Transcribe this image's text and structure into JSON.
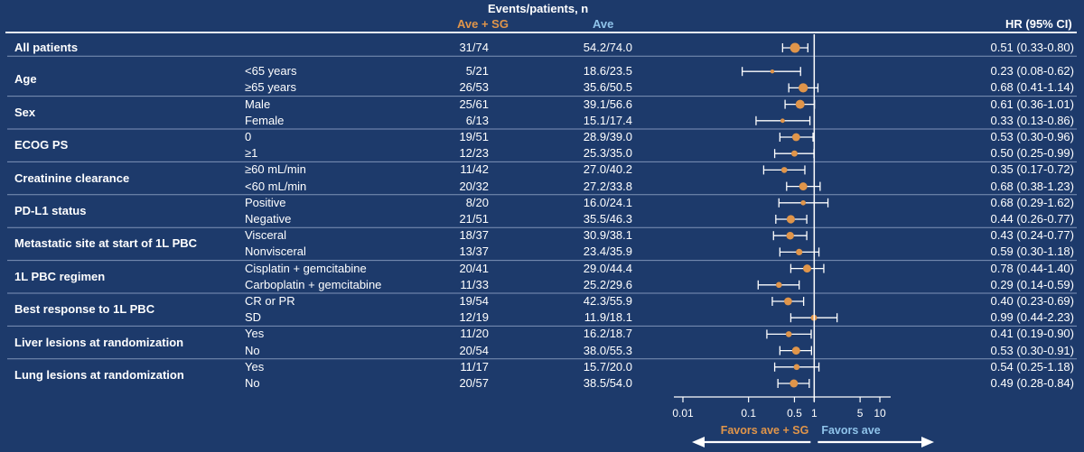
{
  "header": {
    "events_title": "Events/patients, n",
    "col_combo": "Ave + SG",
    "col_mono": "Ave",
    "col_hr": "HR (95% CI)"
  },
  "colors": {
    "background": "#1d3a6b",
    "combo_label": "#e0954a",
    "mono_label": "#8fc3ea",
    "marker": "#e0954a",
    "text": "#ffffff"
  },
  "chart_data": {
    "type": "forest",
    "x_scale": "log",
    "xlim": [
      0.01,
      10
    ],
    "reference_line": 1,
    "xticks": [
      0.01,
      0.1,
      0.5,
      1,
      5,
      10
    ],
    "xtick_labels": [
      "0.01",
      "0.1",
      "0.5",
      "1",
      "5",
      "10"
    ],
    "favors_left": "Favors ave + SG",
    "favors_right": "Favors ave",
    "groups": [
      {
        "label": "All patients",
        "rows": [
          {
            "subgroup": "",
            "combo": "31/74",
            "mono": "54.2/74.0",
            "hr": 0.51,
            "lo": 0.33,
            "hi": 0.8,
            "hr_text": "0.51 (0.33-0.80)"
          }
        ]
      },
      {
        "label": "Age",
        "rows": [
          {
            "subgroup": "<65 years",
            "combo": "5/21",
            "mono": "18.6/23.5",
            "hr": 0.23,
            "lo": 0.08,
            "hi": 0.62,
            "hr_text": "0.23 (0.08-0.62)"
          },
          {
            "subgroup": "≥65 years",
            "combo": "26/53",
            "mono": "35.6/50.5",
            "hr": 0.68,
            "lo": 0.41,
            "hi": 1.14,
            "hr_text": "0.68 (0.41-1.14)"
          }
        ]
      },
      {
        "label": "Sex",
        "rows": [
          {
            "subgroup": "Male",
            "combo": "25/61",
            "mono": "39.1/56.6",
            "hr": 0.61,
            "lo": 0.36,
            "hi": 1.01,
            "hr_text": "0.61 (0.36-1.01)"
          },
          {
            "subgroup": "Female",
            "combo": "6/13",
            "mono": "15.1/17.4",
            "hr": 0.33,
            "lo": 0.13,
            "hi": 0.86,
            "hr_text": "0.33 (0.13-0.86)"
          }
        ]
      },
      {
        "label": "ECOG PS",
        "rows": [
          {
            "subgroup": "0",
            "combo": "19/51",
            "mono": "28.9/39.0",
            "hr": 0.53,
            "lo": 0.3,
            "hi": 0.96,
            "hr_text": "0.53 (0.30-0.96)"
          },
          {
            "subgroup": "≥1",
            "combo": "12/23",
            "mono": "25.3/35.0",
            "hr": 0.5,
            "lo": 0.25,
            "hi": 0.99,
            "hr_text": "0.50 (0.25-0.99)"
          }
        ]
      },
      {
        "label": "Creatinine clearance",
        "rows": [
          {
            "subgroup": "≥60 mL/min",
            "combo": "11/42",
            "mono": "27.0/40.2",
            "hr": 0.35,
            "lo": 0.17,
            "hi": 0.72,
            "hr_text": "0.35 (0.17-0.72)"
          },
          {
            "subgroup": "<60 mL/min",
            "combo": "20/32",
            "mono": "27.2/33.8",
            "hr": 0.68,
            "lo": 0.38,
            "hi": 1.23,
            "hr_text": "0.68 (0.38-1.23)"
          }
        ]
      },
      {
        "label": "PD-L1 status",
        "rows": [
          {
            "subgroup": "Positive",
            "combo": "8/20",
            "mono": "16.0/24.1",
            "hr": 0.68,
            "lo": 0.29,
            "hi": 1.62,
            "hr_text": "0.68 (0.29-1.62)"
          },
          {
            "subgroup": "Negative",
            "combo": "21/51",
            "mono": "35.5/46.3",
            "hr": 0.44,
            "lo": 0.26,
            "hi": 0.77,
            "hr_text": "0.44 (0.26-0.77)"
          }
        ]
      },
      {
        "label": "Metastatic site at start of 1L PBC",
        "rows": [
          {
            "subgroup": "Visceral",
            "combo": "18/37",
            "mono": "30.9/38.1",
            "hr": 0.43,
            "lo": 0.24,
            "hi": 0.77,
            "hr_text": "0.43 (0.24-0.77)"
          },
          {
            "subgroup": "Nonvisceral",
            "combo": "13/37",
            "mono": "23.4/35.9",
            "hr": 0.59,
            "lo": 0.3,
            "hi": 1.18,
            "hr_text": "0.59 (0.30-1.18)"
          }
        ]
      },
      {
        "label": "1L PBC regimen",
        "rows": [
          {
            "subgroup": "Cisplatin + gemcitabine",
            "combo": "20/41",
            "mono": "29.0/44.4",
            "hr": 0.78,
            "lo": 0.44,
            "hi": 1.4,
            "hr_text": "0.78 (0.44-1.40)"
          },
          {
            "subgroup": "Carboplatin + gemcitabine",
            "combo": "11/33",
            "mono": "25.2/29.6",
            "hr": 0.29,
            "lo": 0.14,
            "hi": 0.59,
            "hr_text": "0.29 (0.14-0.59)"
          }
        ]
      },
      {
        "label": "Best response to 1L PBC",
        "rows": [
          {
            "subgroup": "CR or PR",
            "combo": "19/54",
            "mono": "42.3/55.9",
            "hr": 0.4,
            "lo": 0.23,
            "hi": 0.69,
            "hr_text": "0.40 (0.23-0.69)"
          },
          {
            "subgroup": "SD",
            "combo": "12/19",
            "mono": "11.9/18.1",
            "hr": 0.99,
            "lo": 0.44,
            "hi": 2.23,
            "hr_text": "0.99 (0.44-2.23)"
          }
        ]
      },
      {
        "label": "Liver lesions at randomization",
        "rows": [
          {
            "subgroup": "Yes",
            "combo": "11/20",
            "mono": "16.2/18.7",
            "hr": 0.41,
            "lo": 0.19,
            "hi": 0.9,
            "hr_text": "0.41 (0.19-0.90)"
          },
          {
            "subgroup": "No",
            "combo": "20/54",
            "mono": "38.0/55.3",
            "hr": 0.53,
            "lo": 0.3,
            "hi": 0.91,
            "hr_text": "0.53 (0.30-0.91)"
          }
        ]
      },
      {
        "label": "Lung lesions at randomization",
        "rows": [
          {
            "subgroup": "Yes",
            "combo": "11/17",
            "mono": "15.7/20.0",
            "hr": 0.54,
            "lo": 0.25,
            "hi": 1.18,
            "hr_text": "0.54 (0.25-1.18)"
          },
          {
            "subgroup": "No",
            "combo": "20/57",
            "mono": "38.5/54.0",
            "hr": 0.49,
            "lo": 0.28,
            "hi": 0.84,
            "hr_text": "0.49 (0.28-0.84)"
          }
        ]
      }
    ]
  }
}
